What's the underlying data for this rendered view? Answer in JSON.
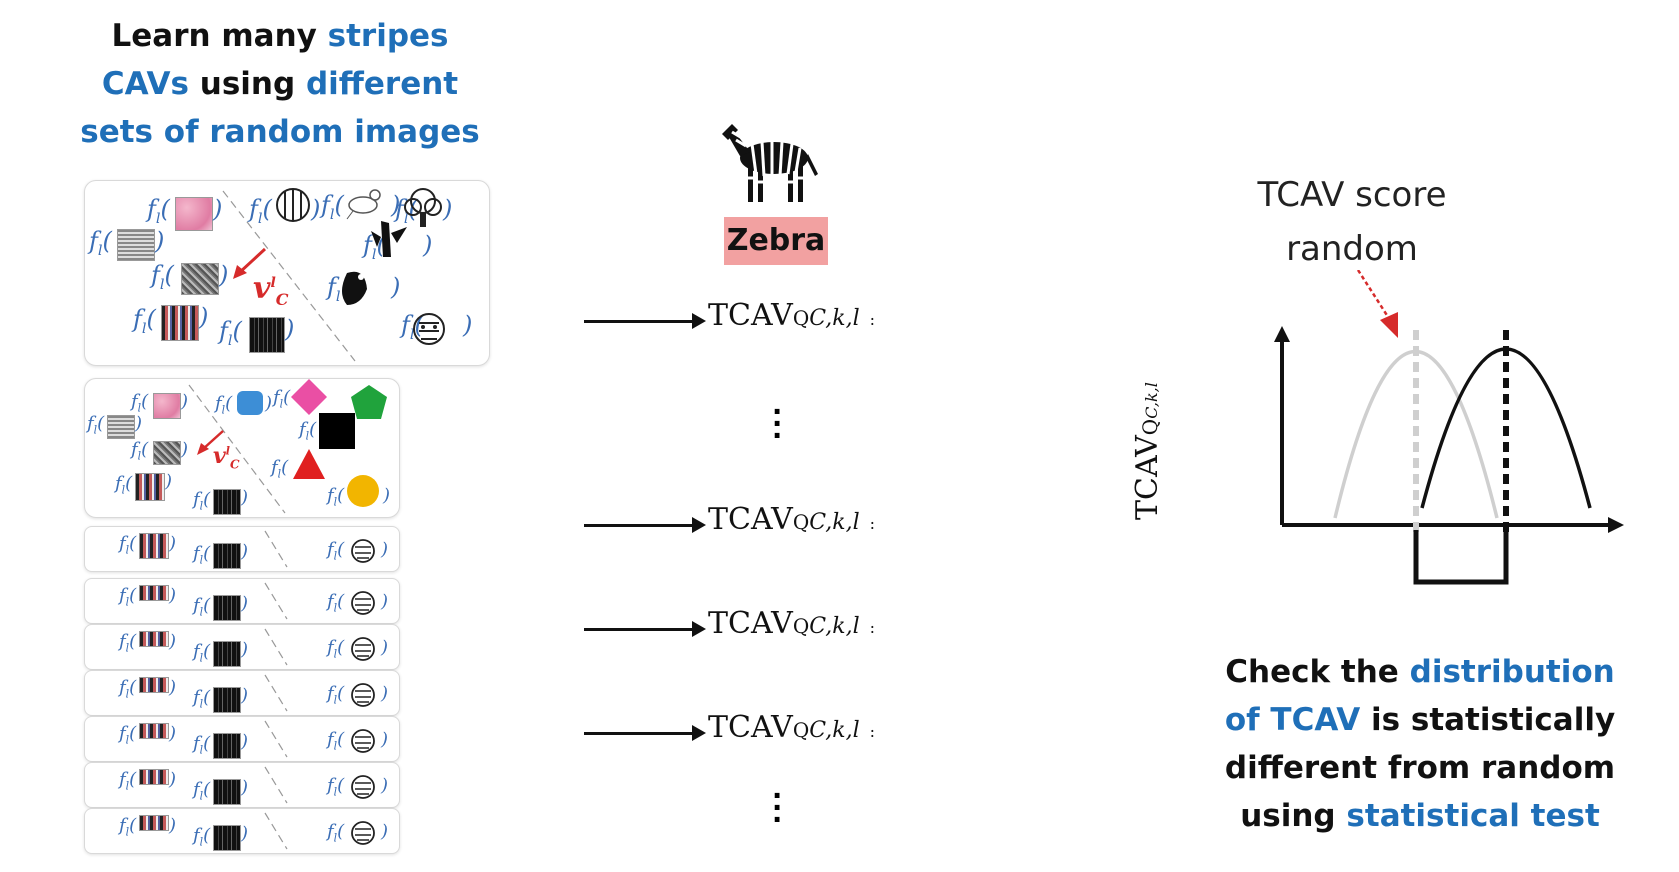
{
  "left": {
    "headline_lines": [
      [
        {
          "text": "Learn many ",
          "blue": false
        },
        {
          "text": "stripes",
          "blue": true
        }
      ],
      [
        {
          "text": "CAVs",
          "blue": true
        },
        {
          "text": " using ",
          "blue": false
        },
        {
          "text": "different",
          "blue": true
        }
      ],
      [
        {
          "text": "sets of random images",
          "blue": true
        }
      ]
    ],
    "f_label": "f",
    "f_sub": "l",
    "v_label": "v",
    "v_sub": "C",
    "v_sup": "l"
  },
  "middle": {
    "zebra_label": "Zebra",
    "tcav_main": "TCAV",
    "tcav_sub": "Q",
    "tcav_sub2": "C,k,l",
    "tcav_colon": ":",
    "ellipsis": "⋮"
  },
  "right": {
    "score_label_line1": "TCAV score",
    "score_label_line2": "random",
    "y_axis_label": "TCAV",
    "y_axis_sub": "Q",
    "y_axis_sub2": "C,k,l",
    "bottom_lines": [
      [
        {
          "text": "Check the ",
          "blue": false
        },
        {
          "text": "distribution",
          "blue": true
        }
      ],
      [
        {
          "text": "of TCAV",
          "blue": true
        },
        {
          "text": " is statistically",
          "blue": false
        }
      ],
      [
        {
          "text": "different from random",
          "blue": false
        }
      ],
      [
        {
          "text": "using ",
          "blue": false
        },
        {
          "text": "statistical test",
          "blue": true
        }
      ]
    ]
  },
  "colors": {
    "blue": "#1f6fb8",
    "red": "#d62b2b",
    "zebra_bg": "#f2a1a1",
    "random_curve": "#cfcfcf",
    "concept_curve": "#111111"
  }
}
